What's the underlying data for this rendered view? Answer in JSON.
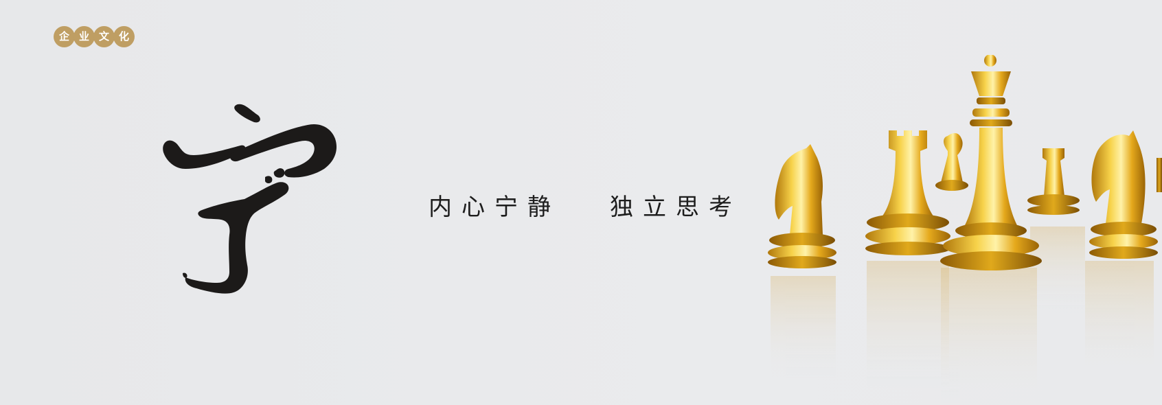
{
  "badge": {
    "chars": [
      "企",
      "业",
      "文",
      "化"
    ],
    "color": "#bf9e63"
  },
  "calligraphy": {
    "character": "宁",
    "color": "#1c1a19"
  },
  "slogan": {
    "part1": "内心宁静",
    "part2": "独立思考"
  },
  "artwork": {
    "pieces": [
      "knight",
      "rook",
      "queen",
      "pawn",
      "pawn",
      "knight"
    ],
    "color": "#e0a91c"
  }
}
